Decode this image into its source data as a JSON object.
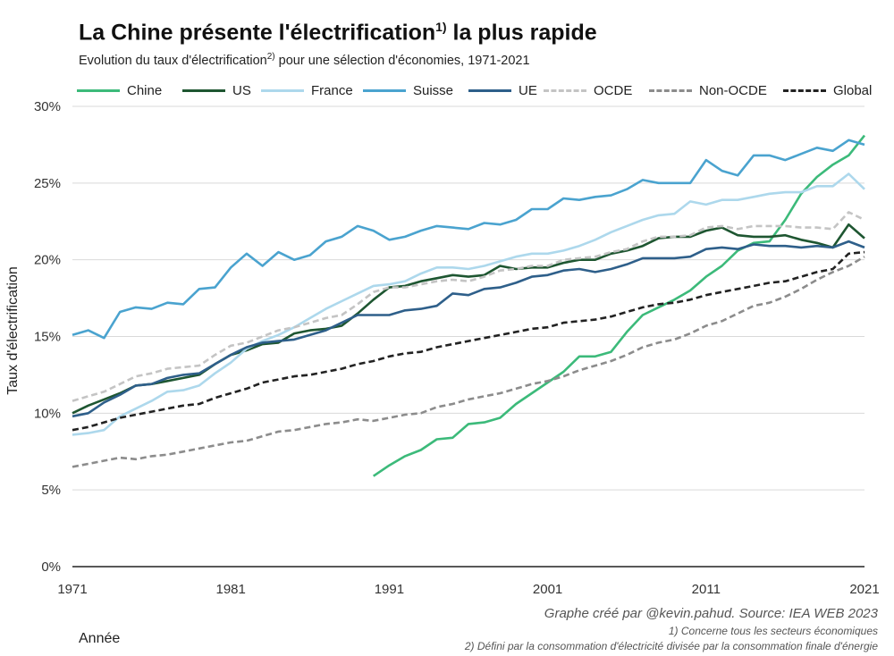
{
  "chart_data": {
    "type": "line",
    "title": "La Chine présente l'électrification",
    "title_sup": "1)",
    "title_suffix": " la plus rapide",
    "subtitle_prefix": "Evolution du taux d'électrification",
    "subtitle_sup": "2)",
    "subtitle_suffix": " pour une sélection d'économies, 1971-2021",
    "xlabel": "Année",
    "ylabel": "Taux d'électrification",
    "xlim": [
      1971,
      2021
    ],
    "ylim": [
      0,
      30
    ],
    "x_ticks": [
      1971,
      1981,
      1991,
      2001,
      2011,
      2021
    ],
    "y_ticks": [
      0,
      5,
      10,
      15,
      20,
      25,
      30
    ],
    "y_tick_labels": [
      "0%",
      "5%",
      "10%",
      "15%",
      "20%",
      "25%",
      "30%"
    ],
    "grid": true,
    "legend_position": "top",
    "series": [
      {
        "name": "Chine",
        "color": "#3cba7a",
        "dash": "solid",
        "start": 1990,
        "values": [
          5.9,
          6.6,
          7.2,
          7.6,
          8.3,
          8.4,
          9.3,
          9.4,
          9.7,
          10.6,
          11.3,
          12.0,
          12.7,
          13.7,
          13.7,
          14.0,
          15.3,
          16.4,
          16.9,
          17.4,
          18.0,
          18.9,
          19.6,
          20.6,
          21.1,
          21.2,
          22.6,
          24.3,
          25.4,
          26.2,
          26.8,
          28.1
        ]
      },
      {
        "name": "US",
        "color": "#1e5631",
        "dash": "solid",
        "start": 1971,
        "values": [
          10.0,
          10.5,
          10.9,
          11.3,
          11.8,
          11.9,
          12.1,
          12.3,
          12.5,
          13.2,
          13.8,
          14.1,
          14.5,
          14.6,
          15.2,
          15.4,
          15.5,
          15.7,
          16.5,
          17.4,
          18.2,
          18.3,
          18.6,
          18.8,
          19.0,
          18.9,
          19.0,
          19.6,
          19.4,
          19.5,
          19.5,
          19.8,
          20.0,
          20.0,
          20.4,
          20.6,
          20.9,
          21.4,
          21.5,
          21.5,
          21.9,
          22.1,
          21.6,
          21.5,
          21.5,
          21.6,
          21.3,
          21.1,
          20.8,
          22.3,
          21.4
        ]
      },
      {
        "name": "France",
        "color": "#add8ec",
        "dash": "solid",
        "start": 1971,
        "values": [
          8.6,
          8.7,
          8.9,
          9.8,
          10.3,
          10.8,
          11.4,
          11.5,
          11.8,
          12.6,
          13.3,
          14.2,
          14.7,
          15.1,
          15.6,
          16.2,
          16.8,
          17.3,
          17.8,
          18.3,
          18.4,
          18.6,
          19.1,
          19.5,
          19.5,
          19.4,
          19.6,
          19.9,
          20.2,
          20.4,
          20.4,
          20.6,
          20.9,
          21.3,
          21.8,
          22.2,
          22.6,
          22.9,
          23.0,
          23.8,
          23.6,
          23.9,
          23.9,
          24.1,
          24.3,
          24.4,
          24.4,
          24.8,
          24.8,
          25.6,
          24.6
        ]
      },
      {
        "name": "Suisse",
        "color": "#4aa3cf",
        "dash": "solid",
        "start": 1971,
        "values": [
          15.1,
          15.4,
          14.9,
          16.6,
          16.9,
          16.8,
          17.2,
          17.1,
          18.1,
          18.2,
          19.5,
          20.4,
          19.6,
          20.5,
          20.0,
          20.3,
          21.2,
          21.5,
          22.2,
          21.9,
          21.3,
          21.5,
          21.9,
          22.2,
          22.1,
          22.0,
          22.4,
          22.3,
          22.6,
          23.3,
          23.3,
          24.0,
          23.9,
          24.1,
          24.2,
          24.6,
          25.2,
          25.0,
          25.0,
          25.0,
          26.5,
          25.8,
          25.5,
          26.8,
          26.8,
          26.5,
          26.9,
          27.3,
          27.1,
          27.8,
          27.5
        ]
      },
      {
        "name": "UE",
        "color": "#2e5f8a",
        "dash": "solid",
        "start": 1971,
        "values": [
          9.8,
          10.0,
          10.7,
          11.2,
          11.8,
          11.9,
          12.3,
          12.5,
          12.6,
          13.2,
          13.8,
          14.3,
          14.6,
          14.7,
          14.8,
          15.1,
          15.4,
          15.9,
          16.4,
          16.4,
          16.4,
          16.7,
          16.8,
          17.0,
          17.8,
          17.7,
          18.1,
          18.2,
          18.5,
          18.9,
          19.0,
          19.3,
          19.4,
          19.2,
          19.4,
          19.7,
          20.1,
          20.1,
          20.1,
          20.2,
          20.7,
          20.8,
          20.7,
          21.0,
          20.9,
          20.9,
          20.8,
          20.9,
          20.8,
          21.2,
          20.8
        ]
      },
      {
        "name": "OCDE",
        "color": "#c4c4c4",
        "dash": "dashed",
        "start": 1971,
        "values": [
          10.8,
          11.1,
          11.4,
          11.9,
          12.4,
          12.6,
          12.9,
          13.0,
          13.1,
          13.8,
          14.4,
          14.6,
          15.0,
          15.4,
          15.6,
          15.9,
          16.2,
          16.4,
          17.1,
          17.9,
          18.2,
          18.2,
          18.4,
          18.6,
          18.7,
          18.6,
          18.9,
          19.3,
          19.4,
          19.6,
          19.6,
          20.0,
          20.1,
          20.2,
          20.5,
          20.7,
          21.2,
          21.5,
          21.5,
          21.6,
          22.1,
          22.2,
          22.0,
          22.2,
          22.2,
          22.2,
          22.1,
          22.1,
          22.0,
          23.1,
          22.6
        ]
      },
      {
        "name": "Non-OCDE",
        "color": "#8c8c8c",
        "dash": "dashed",
        "start": 1971,
        "values": [
          6.5,
          6.7,
          6.9,
          7.1,
          7.0,
          7.2,
          7.3,
          7.5,
          7.7,
          7.9,
          8.1,
          8.2,
          8.5,
          8.8,
          8.9,
          9.1,
          9.3,
          9.4,
          9.6,
          9.5,
          9.7,
          9.9,
          10.0,
          10.4,
          10.6,
          10.9,
          11.1,
          11.3,
          11.6,
          11.9,
          12.1,
          12.4,
          12.8,
          13.1,
          13.4,
          13.8,
          14.3,
          14.6,
          14.8,
          15.2,
          15.7,
          16.0,
          16.5,
          17.0,
          17.2,
          17.6,
          18.1,
          18.7,
          19.2,
          19.6,
          20.2
        ]
      },
      {
        "name": "Global",
        "color": "#222222",
        "dash": "dashed",
        "start": 1971,
        "values": [
          8.9,
          9.1,
          9.4,
          9.7,
          9.9,
          10.1,
          10.3,
          10.5,
          10.6,
          11.0,
          11.3,
          11.6,
          12.0,
          12.2,
          12.4,
          12.5,
          12.7,
          12.9,
          13.2,
          13.4,
          13.7,
          13.9,
          14.0,
          14.3,
          14.5,
          14.7,
          14.9,
          15.1,
          15.3,
          15.5,
          15.6,
          15.9,
          16.0,
          16.1,
          16.3,
          16.6,
          16.9,
          17.1,
          17.2,
          17.4,
          17.7,
          17.9,
          18.1,
          18.3,
          18.5,
          18.6,
          18.9,
          19.2,
          19.4,
          20.4,
          20.5
        ]
      }
    ]
  },
  "footer": {
    "source": "Graphe créé par @kevin.pahud. Source: IEA WEB 2023",
    "note1": "1) Concerne tous les secteurs économiques",
    "note2": "2) Défini par la consommation d'électricité divisée par la consommation finale d'énergie"
  }
}
